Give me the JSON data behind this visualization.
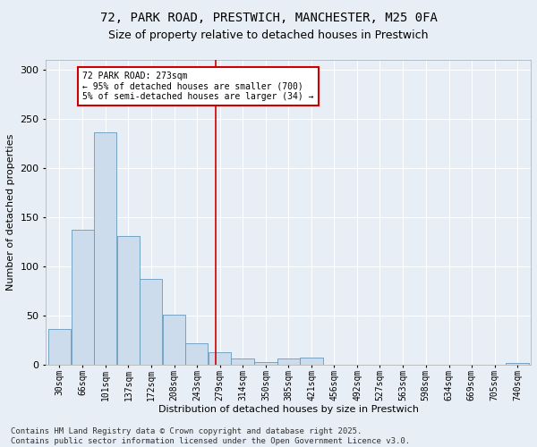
{
  "title_line1": "72, PARK ROAD, PRESTWICH, MANCHESTER, M25 0FA",
  "title_line2": "Size of property relative to detached houses in Prestwich",
  "xlabel": "Distribution of detached houses by size in Prestwich",
  "ylabel": "Number of detached properties",
  "bar_labels": [
    "30sqm",
    "66sqm",
    "101sqm",
    "137sqm",
    "172sqm",
    "208sqm",
    "243sqm",
    "279sqm",
    "314sqm",
    "350sqm",
    "385sqm",
    "421sqm",
    "456sqm",
    "492sqm",
    "527sqm",
    "563sqm",
    "598sqm",
    "634sqm",
    "669sqm",
    "705sqm",
    "740sqm"
  ],
  "bar_values": [
    36,
    137,
    236,
    131,
    87,
    51,
    22,
    13,
    6,
    3,
    6,
    7,
    0,
    0,
    0,
    0,
    0,
    0,
    0,
    0,
    2
  ],
  "bar_color": "#ccdcec",
  "bar_edge_color": "#6699bb",
  "property_sqm": 273,
  "annotation_text": "72 PARK ROAD: 273sqm\n← 95% of detached houses are smaller (700)\n5% of semi-detached houses are larger (34) →",
  "annotation_box_color": "#ffffff",
  "annotation_box_edge": "#cc0000",
  "vline_color": "#cc0000",
  "ylim": [
    0,
    310
  ],
  "footer_line1": "Contains HM Land Registry data © Crown copyright and database right 2025.",
  "footer_line2": "Contains public sector information licensed under the Open Government Licence v3.0.",
  "background_color": "#e8eef5",
  "plot_background": "#e8eef5",
  "grid_color": "#ffffff",
  "title_fontsize": 10,
  "subtitle_fontsize": 9,
  "axis_label_fontsize": 8,
  "tick_fontsize": 7,
  "annotation_fontsize": 7,
  "footer_fontsize": 6.5
}
